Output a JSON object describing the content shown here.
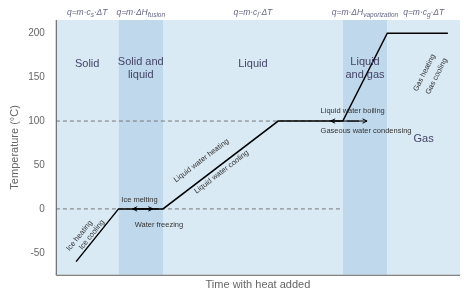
{
  "chart_data": {
    "type": "line",
    "xlabel": "Time with heat added",
    "ylabel": "Temperature (°C)",
    "x": [
      0.5,
      1.55,
      2.65,
      5.5,
      7.1,
      8.2,
      9.7
    ],
    "values": [
      -60,
      0,
      0,
      100,
      100,
      200,
      200
    ],
    "color": "#000000",
    "xlim": [
      0,
      10
    ],
    "ylim": [
      -75,
      215
    ],
    "yticks": [
      -50,
      0,
      50,
      100,
      150,
      200
    ],
    "tick_labels": "y",
    "grid": false,
    "regions": [
      {
        "name": "Solid",
        "x": [
          0,
          1.55
        ],
        "label_y": 165,
        "color": "#daeaf5",
        "formula": {
          "before": "q=m⋅c",
          "sub": "s",
          "after": "⋅ΔT"
        }
      },
      {
        "name": "Solid and\nliquid",
        "x": [
          1.55,
          2.65
        ],
        "label_y": 160,
        "color": "#c0d8ec",
        "formula": {
          "before": "q=m⋅ΔH",
          "sub": "fusion"
        }
      },
      {
        "name": "Liquid",
        "x": [
          2.65,
          7.1
        ],
        "label_y": 165,
        "color": "#daeaf5",
        "formula": {
          "before": "q=m⋅c",
          "sub": "l",
          "after": "⋅ΔT"
        }
      },
      {
        "name": "Liquid\nand gas",
        "x": [
          7.1,
          8.2
        ],
        "label_y": 160,
        "color": "#c0d8ec",
        "formula": {
          "before": "q=m⋅ΔH",
          "sub": "vaporization"
        }
      },
      {
        "name": "Gas",
        "x": [
          8.2,
          10
        ],
        "label_y": 80,
        "color": "#daeaf5",
        "formula": {
          "before": "q=m⋅c",
          "sub": "g",
          "after": "⋅ΔT"
        }
      }
    ],
    "reference_lines": {
      "y": [
        0,
        100
      ],
      "x_end": 7.1,
      "color": "#777777"
    },
    "annotations": [
      {
        "text": "Ice heating",
        "x": 0.62,
        "y": -32
      },
      {
        "text": "Ice cooling",
        "x": 0.85,
        "y": -28
      },
      {
        "text": "Ice melting",
        "x": 1.62,
        "y": 6,
        "arrow": {
          "from": [
            1.9,
            0
          ],
          "to": [
            2.4,
            0
          ]
        }
      },
      {
        "text": "Water freezing",
        "x": 1.95,
        "y": -14,
        "arrow": {
          "from": [
            2.55,
            0
          ],
          "to": [
            1.9,
            0
          ]
        }
      },
      {
        "text": "Liquid water heating",
        "x": 3.6,
        "y": 55
      },
      {
        "text": "Liquid water cooling",
        "x": 4.1,
        "y": 42
      },
      {
        "text": "Liquid water boiling",
        "x": 6.55,
        "y": 107,
        "arrow": {
          "from": [
            7.2,
            100
          ],
          "to": [
            7.7,
            100
          ]
        }
      },
      {
        "text": "Gaseous water condensing",
        "x": 6.55,
        "y": 93,
        "arrow": {
          "from": [
            7.5,
            100
          ],
          "to": [
            6.8,
            100
          ]
        }
      },
      {
        "text": "Gas heating",
        "x": 9.12,
        "y": 155
      },
      {
        "text": "Gas cooling",
        "x": 9.42,
        "y": 151
      }
    ]
  }
}
